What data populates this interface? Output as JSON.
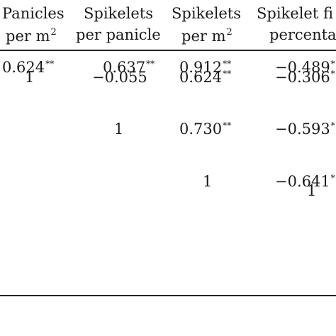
{
  "table": {
    "headers": [
      {
        "line1": "Panicles",
        "line2": "per m",
        "line2_sup": "2"
      },
      {
        "line1": "Spikelets",
        "line2": "per panicle",
        "line2_sup": ""
      },
      {
        "line1": "Spikelets",
        "line2": "per m",
        "line2_sup": "2"
      },
      {
        "line1": "Spikelet fi",
        "line2": "percenta",
        "line2_sup": ""
      }
    ],
    "rows": [
      [
        {
          "value": "0.624",
          "sig": "**"
        },
        {
          "value": "0.637",
          "sig": "**"
        },
        {
          "value": "0.912",
          "sig": "**"
        },
        {
          "value": "−0.489",
          "sig": "*"
        }
      ],
      [
        {
          "value": "1",
          "sig": ""
        },
        {
          "value": "−0.055",
          "sig": ""
        },
        {
          "value": "0.624",
          "sig": "**"
        },
        {
          "value": "−0.306",
          "sig": "*"
        }
      ],
      [
        {
          "value": "",
          "sig": ""
        },
        {
          "value": "1",
          "sig": ""
        },
        {
          "value": "0.730",
          "sig": "**"
        },
        {
          "value": "−0.593",
          "sig": "*"
        }
      ],
      [
        {
          "value": "",
          "sig": ""
        },
        {
          "value": "",
          "sig": ""
        },
        {
          "value": "1",
          "sig": ""
        },
        {
          "value": "−0.641",
          "sig": "*"
        }
      ],
      [
        {
          "value": "",
          "sig": ""
        },
        {
          "value": "",
          "sig": ""
        },
        {
          "value": "",
          "sig": ""
        },
        {
          "value": "1",
          "sig": ""
        }
      ]
    ]
  },
  "colors": {
    "text": "#1a1a1a",
    "rule": "#222222",
    "background": "#ffffff"
  }
}
